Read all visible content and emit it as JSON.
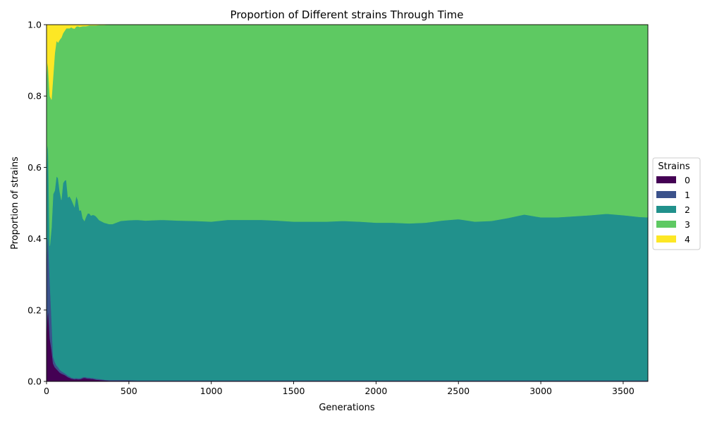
{
  "chart_data": {
    "type": "area",
    "title": "Proportion of Different strains Through Time",
    "xlabel": "Generations",
    "ylabel": "Proportion of strains",
    "xlim": [
      0,
      3650
    ],
    "ylim": [
      0,
      1
    ],
    "xticks": [
      0,
      500,
      1000,
      1500,
      2000,
      2500,
      3000,
      3500
    ],
    "yticks": [
      0.0,
      0.2,
      0.4,
      0.6,
      0.8,
      1.0
    ],
    "xtick_labels": [
      "0",
      "500",
      "1000",
      "1500",
      "2000",
      "2500",
      "3000",
      "3500"
    ],
    "ytick_labels": [
      "0.0",
      "0.2",
      "0.4",
      "0.6",
      "0.8",
      "1.0"
    ],
    "stacked": true,
    "grid": false,
    "legend": {
      "title": "Strains",
      "placement": "center-right-outside"
    },
    "x": [
      0,
      5,
      10,
      20,
      30,
      40,
      50,
      60,
      70,
      80,
      90,
      100,
      110,
      120,
      130,
      140,
      150,
      160,
      170,
      180,
      190,
      200,
      210,
      220,
      230,
      240,
      250,
      260,
      270,
      280,
      290,
      300,
      320,
      350,
      380,
      400,
      450,
      500,
      550,
      600,
      700,
      800,
      900,
      1000,
      1100,
      1200,
      1300,
      1400,
      1500,
      1600,
      1700,
      1800,
      1900,
      2000,
      2100,
      2200,
      2300,
      2400,
      2500,
      2600,
      2700,
      2800,
      2900,
      3000,
      3100,
      3200,
      3300,
      3400,
      3500,
      3600,
      3650
    ],
    "series": [
      {
        "name": "0",
        "color": "#440154",
        "values": [
          0.13,
          0.18,
          0.2,
          0.12,
          0.09,
          0.05,
          0.04,
          0.035,
          0.03,
          0.025,
          0.022,
          0.02,
          0.018,
          0.015,
          0.012,
          0.01,
          0.008,
          0.007,
          0.006,
          0.007,
          0.006,
          0.006,
          0.007,
          0.009,
          0.01,
          0.009,
          0.008,
          0.008,
          0.007,
          0.007,
          0.006,
          0.005,
          0.004,
          0.003,
          0.002,
          0.002,
          0.002,
          0.002,
          0.001,
          0.001,
          0.001,
          0.001,
          0.001,
          0.001,
          0.001,
          0.001,
          0.001,
          0.001,
          0.001,
          0.001,
          0.001,
          0.001,
          0.001,
          0.001,
          0.001,
          0.001,
          0.001,
          0.001,
          0.001,
          0.001,
          0.001,
          0.001,
          0.001,
          0.001,
          0.001,
          0.001,
          0.001,
          0.001,
          0.001,
          0.001,
          0.001
        ]
      },
      {
        "name": "1",
        "color": "#3b528b",
        "values": [
          0.2,
          0.22,
          0.2,
          0.16,
          0.09,
          0.02,
          0.015,
          0.01,
          0.01,
          0.008,
          0.007,
          0.006,
          0.005,
          0.005,
          0.004,
          0.004,
          0.003,
          0.003,
          0.003,
          0.003,
          0.003,
          0.003,
          0.003,
          0.003,
          0.003,
          0.003,
          0.003,
          0.003,
          0.003,
          0.003,
          0.003,
          0.003,
          0.003,
          0.002,
          0.002,
          0.002,
          0.002,
          0.002,
          0.002,
          0.002,
          0.002,
          0.002,
          0.002,
          0.002,
          0.002,
          0.002,
          0.002,
          0.002,
          0.002,
          0.002,
          0.002,
          0.002,
          0.002,
          0.002,
          0.002,
          0.002,
          0.002,
          0.002,
          0.002,
          0.002,
          0.002,
          0.002,
          0.002,
          0.002,
          0.002,
          0.002,
          0.002,
          0.002,
          0.002,
          0.002,
          0.002
        ]
      },
      {
        "name": "2",
        "color": "#21918c",
        "values": [
          0.25,
          0.27,
          0.25,
          0.1,
          0.25,
          0.455,
          0.48,
          0.53,
          0.53,
          0.5,
          0.48,
          0.53,
          0.54,
          0.545,
          0.5,
          0.505,
          0.5,
          0.49,
          0.48,
          0.51,
          0.5,
          0.47,
          0.47,
          0.445,
          0.437,
          0.45,
          0.46,
          0.46,
          0.455,
          0.457,
          0.457,
          0.455,
          0.445,
          0.44,
          0.437,
          0.437,
          0.446,
          0.448,
          0.45,
          0.448,
          0.45,
          0.448,
          0.447,
          0.445,
          0.45,
          0.45,
          0.45,
          0.448,
          0.445,
          0.445,
          0.445,
          0.447,
          0.445,
          0.442,
          0.442,
          0.44,
          0.442,
          0.448,
          0.452,
          0.445,
          0.447,
          0.455,
          0.465,
          0.457,
          0.457,
          0.46,
          0.463,
          0.467,
          0.463,
          0.458,
          0.457
        ]
      },
      {
        "name": "3",
        "color": "#5ec962",
        "values": [
          0.27,
          0.23,
          0.23,
          0.42,
          0.36,
          0.33,
          0.385,
          0.38,
          0.38,
          0.425,
          0.455,
          0.42,
          0.42,
          0.425,
          0.474,
          0.471,
          0.482,
          0.49,
          0.5,
          0.475,
          0.487,
          0.515,
          0.515,
          0.539,
          0.546,
          0.534,
          0.526,
          0.527,
          0.533,
          0.531,
          0.532,
          0.535,
          0.547,
          0.554,
          0.559,
          0.559,
          0.55,
          0.548,
          0.547,
          0.549,
          0.547,
          0.549,
          0.55,
          0.552,
          0.547,
          0.547,
          0.547,
          0.549,
          0.552,
          0.552,
          0.552,
          0.55,
          0.552,
          0.555,
          0.555,
          0.557,
          0.555,
          0.549,
          0.545,
          0.552,
          0.55,
          0.542,
          0.532,
          0.54,
          0.54,
          0.537,
          0.534,
          0.53,
          0.534,
          0.539,
          0.54
        ]
      },
      {
        "name": "4",
        "color": "#fde725",
        "values": [
          0.15,
          0.1,
          0.12,
          0.2,
          0.21,
          0.145,
          0.08,
          0.045,
          0.05,
          0.042,
          0.036,
          0.024,
          0.017,
          0.01,
          0.01,
          0.01,
          0.007,
          0.01,
          0.011,
          0.005,
          0.004,
          0.006,
          0.005,
          0.004,
          0.004,
          0.004,
          0.003,
          0.002,
          0.002,
          0.002,
          0.002,
          0.002,
          0.001,
          0.001,
          0,
          0,
          0,
          0,
          0,
          0,
          0,
          0,
          0,
          0,
          0,
          0,
          0,
          0,
          0,
          0,
          0,
          0,
          0,
          0,
          0,
          0,
          0,
          0,
          0,
          0,
          0,
          0,
          0,
          0,
          0,
          0,
          0,
          0,
          0,
          0,
          0
        ]
      }
    ]
  }
}
